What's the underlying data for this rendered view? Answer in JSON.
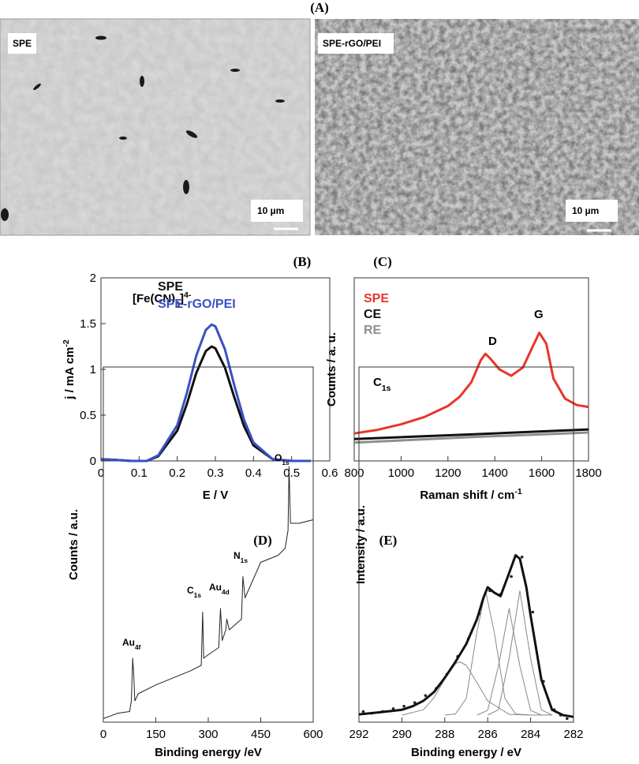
{
  "panel_a": {
    "title": "(A)",
    "images": [
      {
        "label": "SPE",
        "scale": "10 µm"
      },
      {
        "label": "SPE-rGO/PEI",
        "scale": "10 µm"
      }
    ]
  },
  "chart_data": [
    {
      "type": "line",
      "title": "(B)",
      "xlabel": {
        "text": "E / V"
      },
      "ylabel": {
        "text": "j / mA cm",
        "sup": "-2"
      },
      "annotations": [
        {
          "text": "[Fe(CN)",
          "sub": "6",
          "after": "]",
          "sup": "4-"
        }
      ],
      "legend": "upper left",
      "xlim": [
        0,
        0.6
      ],
      "xticks": [
        0,
        0.1,
        0.2,
        0.3,
        0.4,
        0.5,
        0.6
      ],
      "ylim": [
        0,
        2
      ],
      "yticks": [
        0,
        0.5,
        1,
        1.5,
        2
      ],
      "x": [
        0,
        0.04,
        0.08,
        0.12,
        0.15,
        0.2,
        0.225,
        0.25,
        0.275,
        0.29,
        0.3,
        0.325,
        0.35,
        0.375,
        0.4,
        0.45,
        0.5,
        0.55
      ],
      "series": [
        {
          "name": "SPE",
          "color": "#111111",
          "values": [
            0.02,
            0.01,
            0,
            0,
            0.05,
            0.33,
            0.62,
            0.96,
            1.2,
            1.25,
            1.23,
            1.02,
            0.69,
            0.38,
            0.17,
            0.02,
            0,
            0
          ]
        },
        {
          "name": "SPE-rGO/PEI",
          "color": "#3b4fc4",
          "values": [
            0.02,
            0.01,
            0,
            0,
            0.06,
            0.39,
            0.74,
            1.15,
            1.43,
            1.49,
            1.47,
            1.22,
            0.82,
            0.45,
            0.2,
            0.02,
            0,
            0
          ]
        }
      ]
    },
    {
      "type": "line",
      "title": "(C)",
      "xlabel": {
        "text": "Raman shift / cm",
        "sup": "-1"
      },
      "ylabel": {
        "text": "Counts / a. u."
      },
      "annotations": [
        {
          "text": "D"
        },
        {
          "text": "G"
        }
      ],
      "legend": "upper left",
      "xlim": [
        800,
        1800
      ],
      "xticks": [
        800,
        1000,
        1200,
        1400,
        1600,
        1800
      ],
      "ylim": [
        0,
        10
      ],
      "series": [
        {
          "name": "SPE",
          "color": "#e8352a",
          "x": [
            800,
            900,
            1000,
            1100,
            1200,
            1250,
            1300,
            1340,
            1360,
            1380,
            1420,
            1470,
            1520,
            1560,
            1590,
            1620,
            1650,
            1700,
            1750,
            1800
          ],
          "values": [
            1.5,
            1.7,
            2.0,
            2.4,
            3.0,
            3.5,
            4.3,
            5.5,
            5.85,
            5.6,
            5.0,
            4.65,
            5.1,
            6.2,
            7.0,
            6.4,
            4.5,
            3.4,
            3.05,
            2.95
          ]
        },
        {
          "name": "CE",
          "color": "#111111",
          "x": [
            800,
            1300,
            1800
          ],
          "values": [
            1.2,
            1.45,
            1.72
          ]
        },
        {
          "name": "RE",
          "color": "#8a918c",
          "x": [
            800,
            1300,
            1800
          ],
          "values": [
            1.0,
            1.3,
            1.55
          ]
        }
      ]
    },
    {
      "type": "line",
      "title": "(D)",
      "xlabel": {
        "text": "Binding energy /eV"
      },
      "ylabel": {
        "text": "Counts / a.u."
      },
      "annotations": [
        {
          "text": "Au",
          "sub": "4f"
        },
        {
          "text": "C",
          "sub": "1s"
        },
        {
          "text": "Au",
          "sub": "4d"
        },
        {
          "text": "N",
          "sub": "1s"
        },
        {
          "text": "O",
          "sub": "1s"
        }
      ],
      "xlim": [
        0,
        600
      ],
      "xticks": [
        0,
        150,
        300,
        450,
        600
      ],
      "ylim": [
        0,
        10
      ],
      "series": [
        {
          "color": "#222222",
          "x": [
            0,
            40,
            75,
            80,
            84,
            87,
            90,
            100,
            150,
            200,
            250,
            280,
            284,
            287,
            300,
            330,
            335,
            340,
            350,
            353,
            360,
            395,
            399,
            405,
            450,
            500,
            520,
            528,
            531,
            535,
            560,
            600
          ],
          "values": [
            0.1,
            0.25,
            0.3,
            0.6,
            1.8,
            1.3,
            0.6,
            0.8,
            1.05,
            1.25,
            1.45,
            1.6,
            3.1,
            1.8,
            1.9,
            2.1,
            3.2,
            2.3,
            2.6,
            2.9,
            2.6,
            2.9,
            4.1,
            3.5,
            4.5,
            4.7,
            4.9,
            5.4,
            7.2,
            5.6,
            5.6,
            5.7
          ]
        }
      ]
    },
    {
      "type": "line",
      "title": "(E)",
      "xlabel": {
        "text": "Binding energy / eV"
      },
      "ylabel": {
        "text": "Intensity / a.u."
      },
      "annotations": [
        {
          "text": "C",
          "sub": "1s"
        }
      ],
      "xlim": [
        292,
        282
      ],
      "xticks": [
        292,
        290,
        288,
        286,
        284,
        282
      ],
      "ylim": [
        0,
        10
      ],
      "series": [
        {
          "color": "#222222",
          "marker": true,
          "x": [
            291.8,
            291.4,
            290.9,
            290.4,
            289.9,
            289.4,
            288.9,
            288.4,
            287.9,
            287.4,
            286.9,
            286.4,
            285.9,
            285.4,
            284.9,
            284.4,
            283.9,
            283.4,
            282.9,
            282.6,
            282.3
          ],
          "values": [
            0.3,
            0.25,
            0.3,
            0.38,
            0.45,
            0.55,
            0.75,
            0.95,
            1.35,
            1.85,
            2.35,
            3.05,
            3.7,
            3.6,
            4.1,
            4.65,
            3.1,
            1.15,
            0.35,
            0.2,
            0.1
          ]
        },
        {
          "color": "#888888",
          "x": [
            290,
            289,
            288.5,
            288,
            287.5,
            287.3,
            287,
            286.5,
            286,
            285,
            284,
            283
          ],
          "values": [
            0.2,
            0.35,
            0.69,
            1.22,
            1.65,
            1.7,
            1.6,
            1.11,
            0.6,
            0.22,
            0.2,
            0.2
          ]
        },
        {
          "color": "#888888",
          "x": [
            288,
            287.5,
            287,
            286.5,
            286.1,
            285.7,
            285.2,
            284.7,
            284
          ],
          "values": [
            0.2,
            0.23,
            0.67,
            2.55,
            3.7,
            2.55,
            0.67,
            0.23,
            0.2
          ]
        },
        {
          "color": "#888888",
          "x": [
            286.5,
            286,
            285.5,
            285,
            284.5,
            284,
            283.5
          ],
          "values": [
            0.2,
            0.33,
            1.58,
            3.2,
            1.58,
            0.33,
            0.2
          ]
        },
        {
          "color": "#888888",
          "x": [
            286,
            285.5,
            285,
            284.5,
            284,
            283.5,
            283
          ],
          "values": [
            0.2,
            0.35,
            1.8,
            3.7,
            1.8,
            0.35,
            0.2
          ]
        },
        {
          "color": "#111111",
          "width": 3,
          "x": [
            292,
            291,
            290,
            289.5,
            289,
            288.5,
            288,
            287.5,
            287,
            286.5,
            286.2,
            286,
            285.7,
            285.4,
            285,
            284.7,
            284.5,
            284.2,
            284,
            283.5,
            283,
            282.5,
            282
          ],
          "values": [
            0.22,
            0.28,
            0.35,
            0.45,
            0.6,
            0.85,
            1.25,
            1.7,
            2.2,
            2.9,
            3.5,
            3.8,
            3.65,
            3.55,
            4.2,
            4.7,
            4.6,
            3.8,
            3.0,
            1.2,
            0.35,
            0.2,
            0.15
          ]
        }
      ]
    }
  ]
}
